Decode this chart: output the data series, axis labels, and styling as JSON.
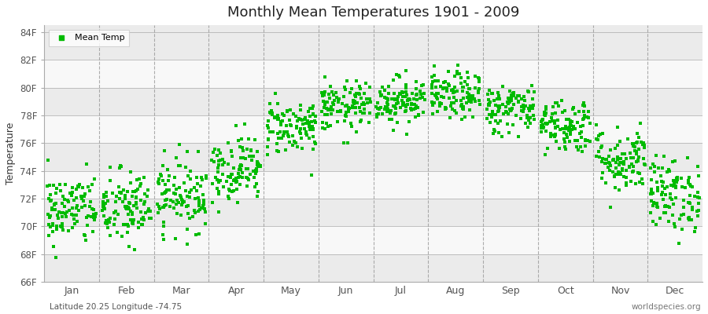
{
  "title": "Monthly Mean Temperatures 1901 - 2009",
  "ylabel": "Temperature",
  "ylim": [
    66,
    84.5
  ],
  "yticks": [
    66,
    68,
    70,
    72,
    74,
    76,
    78,
    80,
    82,
    84
  ],
  "ytick_labels": [
    "66F",
    "68F",
    "70F",
    "72F",
    "74F",
    "76F",
    "78F",
    "80F",
    "82F",
    "84F"
  ],
  "months": [
    "Jan",
    "Feb",
    "Mar",
    "Apr",
    "May",
    "Jun",
    "Jul",
    "Aug",
    "Sep",
    "Oct",
    "Nov",
    "Dec"
  ],
  "dot_color": "#00bb00",
  "dot_size": 5,
  "background_color": "#ffffff",
  "band_colors": [
    "#ebebeb",
    "#f8f8f8"
  ],
  "dashed_color": "#999999",
  "legend_label": "Mean Temp",
  "subtitle_left": "Latitude 20.25 Longitude -74.75",
  "subtitle_right": "worldspecies.org",
  "mean_temps_by_month": [
    71.2,
    71.3,
    72.3,
    74.2,
    77.2,
    78.6,
    79.1,
    79.4,
    78.5,
    77.3,
    74.8,
    72.3
  ],
  "std_by_month": [
    1.3,
    1.4,
    1.3,
    1.2,
    1.0,
    0.9,
    0.85,
    0.85,
    0.9,
    1.0,
    1.2,
    1.35
  ],
  "n_years": 109,
  "seed": 42
}
